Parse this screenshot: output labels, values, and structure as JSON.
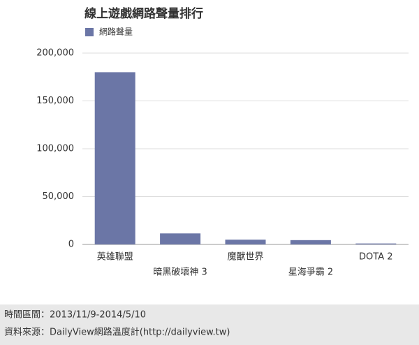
{
  "chart_data": {
    "type": "bar",
    "title": "線上遊戲網路聲量排行",
    "categories": [
      "英雄聯盟",
      "暗黑破壞神 3",
      "魔獸世界",
      "星海爭霸 2",
      "DOTA 2"
    ],
    "series": [
      {
        "name": "網路聲量",
        "color": "#6b76a6",
        "values": [
          180000,
          11500,
          5000,
          4500,
          1000
        ]
      }
    ],
    "ylim": [
      0,
      200000
    ],
    "yticks": [
      0,
      {
        "value": 50000,
        "label": "50,000"
      },
      {
        "value": 100000,
        "label": "100,000"
      },
      {
        "value": 150000,
        "label": "150,000"
      },
      {
        "value": 200000,
        "label": "200,000"
      }
    ],
    "grid": true
  },
  "footer": [
    "時間區間：2013/11/9-2014/5/10",
    "資料來源：DailyView網路溫度計(http://dailyview.tw)"
  ]
}
